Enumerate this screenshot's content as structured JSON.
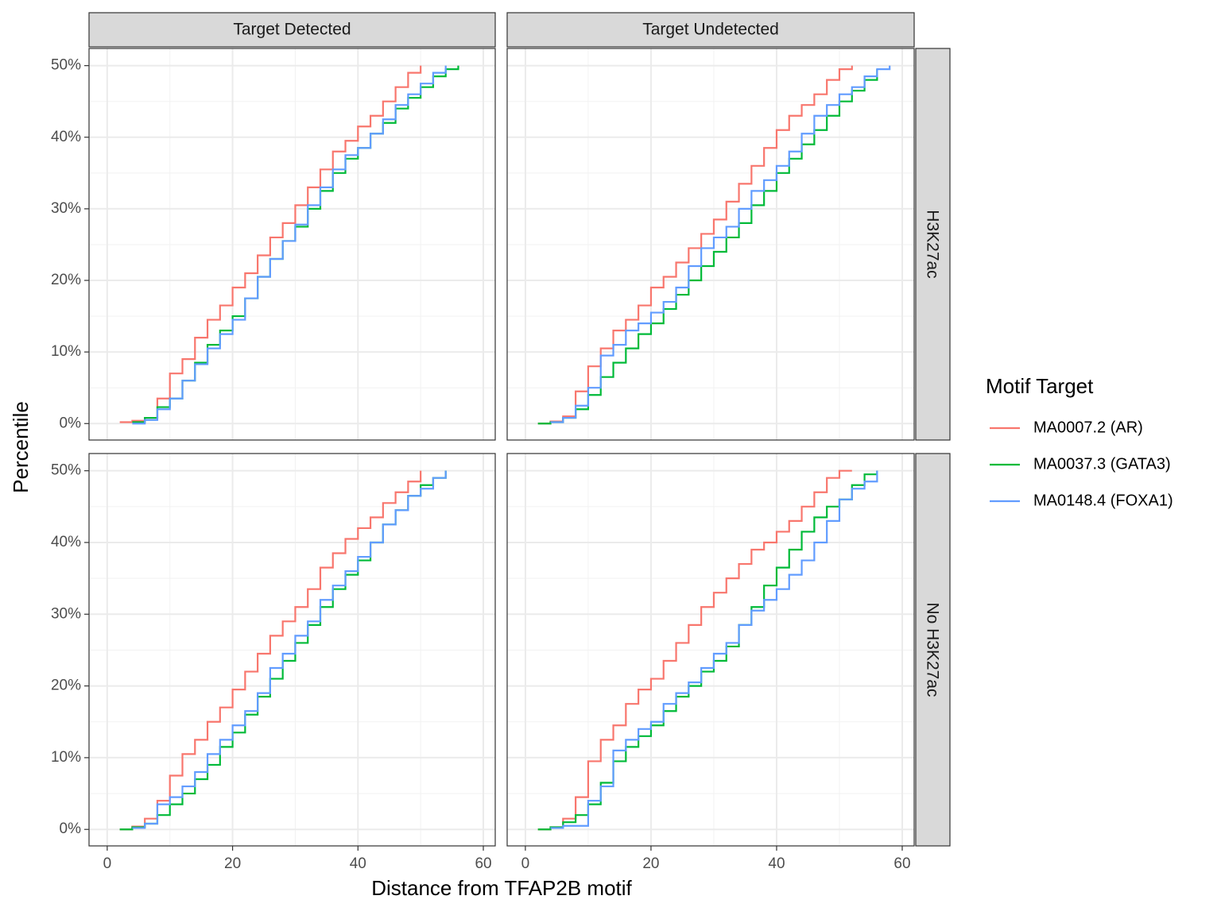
{
  "chart_data": {
    "type": "line",
    "xlabel": "Distance from TFAP2B motif",
    "ylabel": "Percentile",
    "legend_title": "Motif Target",
    "columns": [
      "Target Detected",
      "Target Undetected"
    ],
    "series": [
      {
        "name": "MA0007.2 (AR)",
        "color": "#F8766D"
      },
      {
        "name": "MA0037.3 (GATA3)",
        "color": "#00BA38"
      },
      {
        "name": "MA0148.4 (FOXA1)",
        "color": "#619CFF"
      }
    ],
    "xlim": [
      -2.9,
      61.9
    ],
    "ylim": [
      -2.3,
      52.4
    ],
    "xticks": [
      0,
      20,
      40,
      60
    ],
    "yticks": [
      {
        "value": 0,
        "label": "0%"
      },
      {
        "value": 10,
        "label": "10%"
      },
      {
        "value": 20,
        "label": "20%"
      },
      {
        "value": 30,
        "label": "30%"
      },
      {
        "value": 40,
        "label": "40%"
      },
      {
        "value": 50,
        "label": "50%"
      }
    ],
    "grid": true,
    "x": [
      2,
      4,
      6,
      8,
      10,
      12,
      14,
      16,
      18,
      20,
      22,
      24,
      26,
      28,
      30,
      32,
      34,
      36,
      38,
      40,
      42,
      44,
      46,
      48,
      50,
      52,
      54,
      56,
      58
    ],
    "rows": [
      {
        "label": "H3K27ac",
        "panels": [
          {
            "values": [
              [
                0.2,
                0.4,
                0.8,
                3.5,
                7,
                9,
                12,
                14.5,
                16.5,
                19,
                21,
                23.5,
                26,
                28,
                30.5,
                33,
                35.5,
                38,
                39.5,
                41.5,
                43,
                45,
                47,
                49,
                50,
                null,
                null,
                null,
                null
              ],
              [
                null,
                0.2,
                0.8,
                2.3,
                3.5,
                6,
                8.5,
                11,
                13,
                15,
                17.5,
                20.5,
                23,
                25.5,
                27.5,
                30,
                32.5,
                35,
                37,
                38.5,
                40.5,
                42,
                44,
                45.5,
                47,
                48.5,
                49.5,
                50,
                null
              ],
              [
                null,
                0,
                0.5,
                2,
                3.5,
                6,
                8.3,
                10.5,
                12.5,
                14.5,
                17.5,
                20.5,
                23,
                25.5,
                27.8,
                30.5,
                33,
                35.5,
                37.5,
                38.5,
                40.5,
                42.5,
                44.5,
                46,
                47.5,
                49,
                50,
                null,
                null
              ]
            ]
          },
          {
            "values": [
              [
                0,
                0.3,
                1,
                4.5,
                8,
                10.5,
                13,
                14.5,
                16.5,
                19,
                20.5,
                22.5,
                24.5,
                26.5,
                28.5,
                31,
                33.5,
                36,
                38.5,
                41,
                43,
                44.5,
                46,
                48,
                49.5,
                50,
                null,
                null,
                null
              ],
              [
                0,
                0.2,
                0.8,
                2,
                4,
                6.5,
                8.5,
                10.5,
                12.5,
                14,
                16,
                18,
                20,
                22,
                24,
                26,
                28,
                30.5,
                32.5,
                35,
                37,
                39,
                41,
                43,
                45,
                46.5,
                48,
                49.5,
                null
              ],
              [
                null,
                0.2,
                0.8,
                2.5,
                5,
                9.5,
                11,
                13,
                14,
                15.5,
                17,
                19,
                22,
                24.5,
                26,
                27.5,
                30,
                32.5,
                34,
                36,
                38,
                40.5,
                43,
                44.5,
                46,
                47,
                48.5,
                49.5,
                50
              ]
            ]
          }
        ]
      },
      {
        "label": "No H3K27ac",
        "panels": [
          {
            "values": [
              [
                0,
                0.4,
                1.5,
                4,
                7.5,
                10.5,
                12.5,
                15,
                17,
                19.5,
                22,
                24.5,
                27,
                29,
                31,
                33.5,
                36.5,
                38.5,
                40.5,
                42,
                43.5,
                45.5,
                47,
                48.5,
                50,
                null,
                null,
                null,
                null
              ],
              [
                0,
                0.3,
                0.8,
                2,
                3.5,
                5,
                7,
                9,
                11.5,
                13.5,
                16,
                18.5,
                21,
                23.5,
                26,
                28.5,
                31,
                33.5,
                35.5,
                37.5,
                40,
                42.5,
                44.5,
                46.5,
                48,
                49,
                50,
                null,
                null
              ],
              [
                null,
                0.2,
                0.8,
                3.5,
                4.5,
                6,
                8,
                10.5,
                12.5,
                14.5,
                16.5,
                19,
                22.5,
                24.5,
                27,
                29,
                32,
                34,
                36,
                38,
                40,
                42.5,
                44.5,
                46.5,
                47.5,
                49,
                50,
                null,
                null
              ]
            ]
          },
          {
            "values": [
              [
                0,
                0.3,
                1.5,
                4.5,
                9.5,
                12.5,
                14.5,
                17.5,
                19.5,
                21,
                23.5,
                26,
                28.5,
                31,
                33,
                35,
                37,
                39,
                40,
                41.5,
                43,
                45,
                47,
                49,
                50,
                50,
                null,
                null,
                null
              ],
              [
                0,
                0.3,
                1,
                2,
                3.5,
                6.5,
                9.5,
                11.5,
                13,
                14.5,
                16.5,
                18.5,
                20,
                22,
                23.5,
                25.5,
                28.5,
                31,
                34,
                36.5,
                39,
                41.5,
                43.5,
                45,
                46,
                48,
                49.5,
                50,
                null
              ],
              [
                null,
                0.2,
                0.5,
                0.5,
                4,
                6,
                11,
                12.5,
                14,
                15,
                17.5,
                19,
                20.5,
                22.5,
                24.5,
                26,
                28.5,
                30.5,
                32,
                33.5,
                35.5,
                37.5,
                40,
                43,
                46,
                47.5,
                48.5,
                50,
                null
              ]
            ]
          }
        ]
      }
    ]
  }
}
